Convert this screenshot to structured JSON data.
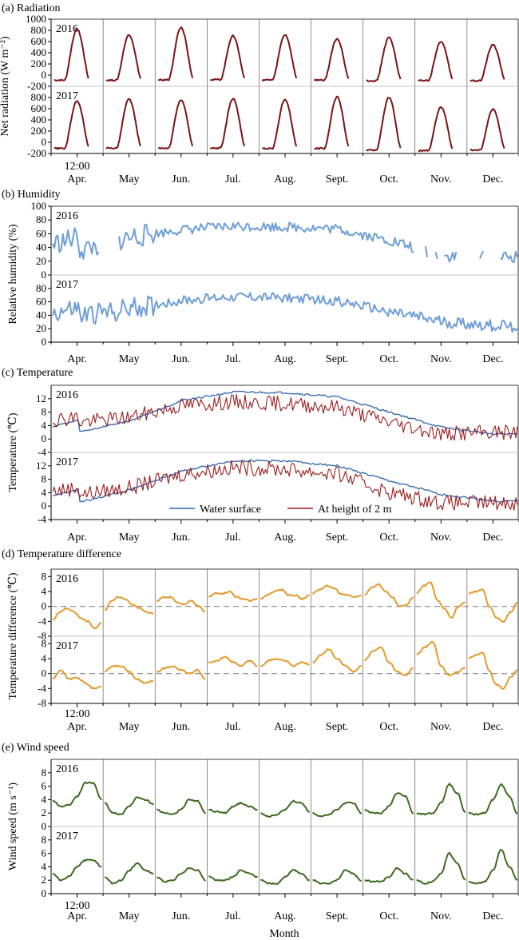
{
  "figure": {
    "xlabel": "Month"
  },
  "months": [
    "Apr.",
    "May",
    "Jun.",
    "Jul.",
    "Aug.",
    "Sept.",
    "Oct.",
    "Nov.",
    "Dec."
  ],
  "noon_label": "12:00",
  "chart_data": [
    {
      "type": "line",
      "panel": "a",
      "title": "(a) Radiation",
      "ylabel": "Net radiation (W m⁻²)",
      "ylim": [
        -200,
        1000
      ],
      "yticks": [
        -200,
        0,
        200,
        400,
        600,
        800,
        1000
      ],
      "xaxis": "mean diurnal cycle (hour of day, 0-24) for each month",
      "color": "#7b1416",
      "rows": [
        {
          "year": "2016",
          "series": [
            {
              "month": "Apr.",
              "night": -90,
              "peak": 820
            },
            {
              "month": "May",
              "night": -90,
              "peak": 720
            },
            {
              "month": "Jun.",
              "night": -85,
              "peak": 850
            },
            {
              "month": "Jul.",
              "night": -80,
              "peak": 700
            },
            {
              "month": "Aug.",
              "night": -85,
              "peak": 720
            },
            {
              "month": "Sept.",
              "night": -90,
              "peak": 650
            },
            {
              "month": "Oct.",
              "night": -100,
              "peak": 670
            },
            {
              "month": "Nov.",
              "night": -95,
              "peak": 600
            },
            {
              "month": "Dec.",
              "night": -100,
              "peak": 540
            }
          ]
        },
        {
          "year": "2017",
          "series": [
            {
              "month": "Apr.",
              "night": -110,
              "peak": 740
            },
            {
              "month": "May",
              "night": -105,
              "peak": 770
            },
            {
              "month": "Jun.",
              "night": -105,
              "peak": 760
            },
            {
              "month": "Jul.",
              "night": -105,
              "peak": 780
            },
            {
              "month": "Aug.",
              "night": -110,
              "peak": 760
            },
            {
              "month": "Sept.",
              "night": -110,
              "peak": 810
            },
            {
              "month": "Oct.",
              "night": -140,
              "peak": 800
            },
            {
              "month": "Nov.",
              "night": -150,
              "peak": 630
            },
            {
              "month": "Dec.",
              "night": -140,
              "peak": 590
            }
          ]
        }
      ]
    },
    {
      "type": "line",
      "panel": "b",
      "title": "(b) Humidity",
      "ylabel": "Relative humidity (%)",
      "ylim": [
        0,
        100
      ],
      "yticks": [
        0,
        20,
        40,
        60,
        80,
        100
      ],
      "xaxis": "daily values, April to December",
      "color": "#6f9fd8",
      "rows": [
        {
          "year": "2016",
          "monthly_mean_rh": {
            "Apr.": 35,
            "May": 55,
            "Jun.": 66,
            "Jul.": 71,
            "Aug.": 70,
            "Sept.": 67,
            "Oct.": 50,
            "Nov.": 28,
            "Dec.": 25
          },
          "missing_days": [
            [
              28,
              38
            ],
            [
              213,
              218
            ],
            [
              221,
              224
            ],
            [
              227,
              229
            ],
            [
              238,
              250
            ],
            [
              254,
              262
            ]
          ]
        },
        {
          "year": "2017",
          "monthly_mean_rh": {
            "Apr.": 38,
            "May": 50,
            "Jun.": 62,
            "Jul.": 68,
            "Aug.": 66,
            "Sept.": 61,
            "Oct.": 45,
            "Nov.": 30,
            "Dec.": 24
          },
          "missing_days": []
        }
      ]
    },
    {
      "type": "line",
      "panel": "c",
      "title": "(c) Temperature",
      "ylabel": "Temperature (℃)",
      "ylim": [
        -4,
        16
      ],
      "yticks": [
        -4,
        0,
        4,
        8,
        12
      ],
      "xaxis": "daily values, April to December",
      "legend": {
        "placement": "bottom-center"
      },
      "series": [
        {
          "name": "Water surface",
          "color": "#2e64ad",
          "monthly_mean_2016": {
            "Apr.": 2.0,
            "May": 5.5,
            "Jun.": 11.5,
            "Jul.": 14.0,
            "Aug.": 13.8,
            "Sept.": 12.5,
            "Oct.": 8.0,
            "Nov.": 3.5,
            "Dec.": 1.5
          },
          "monthly_mean_2017": {
            "Apr.": 1.0,
            "May": 5.0,
            "Jun.": 10.5,
            "Jul.": 13.5,
            "Aug.": 13.5,
            "Sept.": 12.0,
            "Oct.": 7.5,
            "Nov.": 3.5,
            "Dec.": 1.5
          }
        },
        {
          "name": "At height of 2 m",
          "color": "#9b1c1c",
          "monthly_mean_2016": {
            "Apr.": 5.0,
            "May": 6.5,
            "Jun.": 10.0,
            "Jul.": 11.0,
            "Aug.": 10.5,
            "Sept.": 9.5,
            "Oct.": 5.0,
            "Nov.": 1.5,
            "Dec.": 2.0
          },
          "monthly_mean_2017": {
            "Apr.": 3.5,
            "May": 5.5,
            "Jun.": 9.5,
            "Jul.": 11.5,
            "Aug.": 11.0,
            "Sept.": 9.5,
            "Oct.": 4.0,
            "Nov.": 1.0,
            "Dec.": 1.0
          }
        }
      ],
      "rows": [
        {
          "year": "2016"
        },
        {
          "year": "2017"
        }
      ]
    },
    {
      "type": "line",
      "panel": "d",
      "title": "(d) Temperature difference",
      "ylabel": "Temperature difference (℃)",
      "ylim": [
        -8,
        10
      ],
      "yticks": [
        -8,
        -4,
        0,
        4,
        8
      ],
      "zero_line": "dashed",
      "xaxis": "mean diurnal cycle (hour of day, 0-24) for each month",
      "color": "#e59a2c",
      "rows": [
        {
          "year": "2016",
          "series": [
            {
              "month": "Apr.",
              "values": [
                -3.5,
                -1.5,
                -0.5,
                -1.5,
                -3.0,
                -4.0,
                -6.0,
                -4.5
              ]
            },
            {
              "month": "May",
              "values": [
                -1.0,
                1.5,
                2.5,
                2.0,
                0.5,
                -0.5,
                -1.5,
                -2.0
              ]
            },
            {
              "month": "Jun.",
              "values": [
                1.5,
                2.5,
                2.5,
                1.0,
                0.5,
                1.5,
                0.0,
                -1.5
              ]
            },
            {
              "month": "Jul.",
              "values": [
                2.5,
                3.5,
                3.5,
                4.0,
                2.5,
                2.0,
                1.5,
                2.0
              ]
            },
            {
              "month": "Aug.",
              "values": [
                2.0,
                3.0,
                4.0,
                4.5,
                3.0,
                3.0,
                2.0,
                3.0
              ]
            },
            {
              "month": "Sept.",
              "values": [
                3.5,
                4.5,
                5.5,
                5.0,
                3.5,
                3.0,
                2.5,
                3.0
              ]
            },
            {
              "month": "Oct.",
              "values": [
                3.0,
                5.0,
                6.0,
                4.0,
                2.5,
                0.0,
                0.5,
                2.5
              ]
            },
            {
              "month": "Nov.",
              "values": [
                3.5,
                5.5,
                6.5,
                1.5,
                -0.5,
                -3.0,
                0.0,
                1.0
              ]
            },
            {
              "month": "Dec.",
              "values": [
                3.5,
                4.0,
                4.5,
                0.0,
                -3.0,
                -4.0,
                -1.5,
                1.0
              ]
            }
          ]
        },
        {
          "year": "2017",
          "series": [
            {
              "month": "Apr.",
              "values": [
                -1.5,
                1.0,
                -1.5,
                -1.0,
                -2.5,
                -4.0,
                -3.5
              ]
            },
            {
              "month": "May",
              "values": [
                0.5,
                2.0,
                2.0,
                0.5,
                -1.5,
                -2.5,
                -2.0
              ]
            },
            {
              "month": "Jun.",
              "values": [
                0.5,
                1.5,
                2.0,
                1.0,
                0.0,
                1.0,
                -1.5
              ]
            },
            {
              "month": "Jul.",
              "values": [
                3.0,
                3.5,
                4.5,
                3.0,
                2.0,
                3.5,
                2.0
              ]
            },
            {
              "month": "Aug.",
              "values": [
                2.0,
                3.5,
                4.0,
                3.5,
                2.0,
                3.0,
                2.5
              ]
            },
            {
              "month": "Sept.",
              "values": [
                3.0,
                5.0,
                6.5,
                4.0,
                2.0,
                0.5,
                2.0
              ]
            },
            {
              "month": "Oct.",
              "values": [
                3.5,
                6.0,
                7.0,
                3.0,
                0.5,
                -0.5,
                1.5
              ]
            },
            {
              "month": "Nov.",
              "values": [
                5.0,
                7.0,
                8.5,
                2.0,
                -0.5,
                0.5,
                1.5
              ]
            },
            {
              "month": "Dec.",
              "values": [
                4.0,
                5.0,
                5.5,
                0.5,
                -3.0,
                -4.0,
                -1.0,
                1.0
              ]
            }
          ]
        }
      ]
    },
    {
      "type": "line",
      "panel": "e",
      "title": "(e) Wind speed",
      "ylabel": "Wind speed (m s⁻¹)",
      "ylim": [
        0,
        10
      ],
      "yticks": [
        0,
        2,
        4,
        6,
        8
      ],
      "xaxis": "mean diurnal cycle (hour of day, 0-24) for each month",
      "color": "#3f6a22",
      "rows": [
        {
          "year": "2016",
          "series": [
            {
              "month": "Apr.",
              "values": [
                3.8,
                3.0,
                3.2,
                4.5,
                6.5,
                6.5,
                4.0
              ]
            },
            {
              "month": "May",
              "values": [
                3.5,
                2.0,
                1.8,
                3.0,
                4.3,
                4.0,
                3.3
              ]
            },
            {
              "month": "Jun.",
              "values": [
                2.5,
                2.0,
                1.8,
                2.5,
                4.0,
                3.8,
                2.0
              ]
            },
            {
              "month": "Jul.",
              "values": [
                2.5,
                2.2,
                2.0,
                3.0,
                3.5,
                3.0,
                2.5
              ]
            },
            {
              "month": "Aug.",
              "values": [
                2.0,
                1.5,
                1.8,
                2.5,
                3.8,
                3.5,
                2.2
              ]
            },
            {
              "month": "Sept.",
              "values": [
                2.0,
                1.5,
                1.8,
                2.5,
                3.5,
                3.5,
                2.0
              ]
            },
            {
              "month": "Oct.",
              "values": [
                2.5,
                2.0,
                2.0,
                3.0,
                5.0,
                4.5,
                2.0
              ]
            },
            {
              "month": "Nov.",
              "values": [
                2.0,
                1.8,
                2.0,
                3.5,
                6.3,
                5.0,
                2.0
              ]
            },
            {
              "month": "Dec.",
              "values": [
                2.0,
                1.8,
                2.0,
                4.0,
                6.3,
                4.5,
                1.8
              ]
            }
          ]
        },
        {
          "year": "2017",
          "series": [
            {
              "month": "Apr.",
              "values": [
                3.0,
                2.0,
                2.5,
                4.0,
                5.0,
                5.0,
                4.0
              ]
            },
            {
              "month": "May",
              "values": [
                2.5,
                1.5,
                2.0,
                3.5,
                4.5,
                3.5,
                3.0
              ]
            },
            {
              "month": "Jun.",
              "values": [
                2.5,
                1.8,
                2.0,
                3.0,
                3.8,
                3.5,
                2.0
              ]
            },
            {
              "month": "Jul.",
              "values": [
                2.5,
                2.0,
                2.0,
                2.5,
                3.5,
                3.0,
                2.5
              ]
            },
            {
              "month": "Aug.",
              "values": [
                2.0,
                1.5,
                1.5,
                2.5,
                3.5,
                3.0,
                2.0
              ]
            },
            {
              "month": "Sept.",
              "values": [
                2.0,
                1.5,
                1.5,
                2.0,
                3.5,
                3.0,
                1.8
              ]
            },
            {
              "month": "Oct.",
              "values": [
                2.0,
                1.8,
                1.8,
                2.5,
                3.8,
                3.0,
                2.0
              ]
            },
            {
              "month": "Nov.",
              "values": [
                2.0,
                1.5,
                1.8,
                3.0,
                6.0,
                4.5,
                2.0
              ]
            },
            {
              "month": "Dec.",
              "values": [
                1.8,
                1.5,
                1.8,
                3.5,
                6.5,
                4.0,
                2.0
              ]
            }
          ]
        }
      ]
    }
  ]
}
